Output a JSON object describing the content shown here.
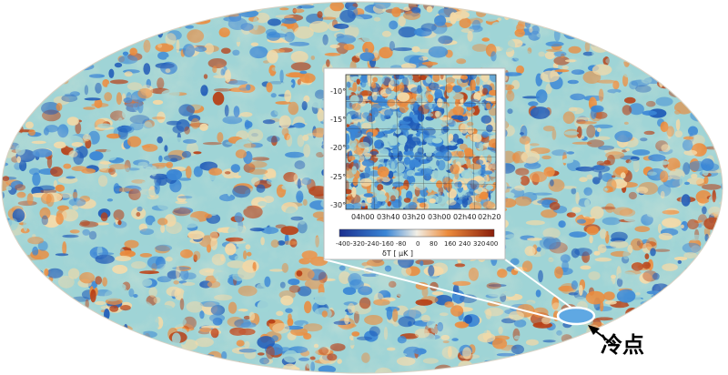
{
  "colors": {
    "blue_dark": "#1f5bb8",
    "blue": "#3a86d6",
    "cyan": "#9fd4d6",
    "yellow": "#f4d9a6",
    "orange": "#ec8b3c",
    "red": "#b84016"
  },
  "inset": {
    "y_ticks": [
      "-10°",
      "-15°",
      "-20°",
      "-25°",
      "-30°"
    ],
    "x_ticks": [
      "04h00",
      "03h40",
      "03h20",
      "03h00",
      "02h40",
      "02h20"
    ],
    "colorbar": {
      "ticks": [
        "-400",
        "-320",
        "-240",
        "-160",
        "-80",
        "0",
        "80",
        "160",
        "240",
        "320",
        "400"
      ],
      "label": "δT [ μK ]"
    }
  },
  "annotation": {
    "label": "冷点"
  }
}
